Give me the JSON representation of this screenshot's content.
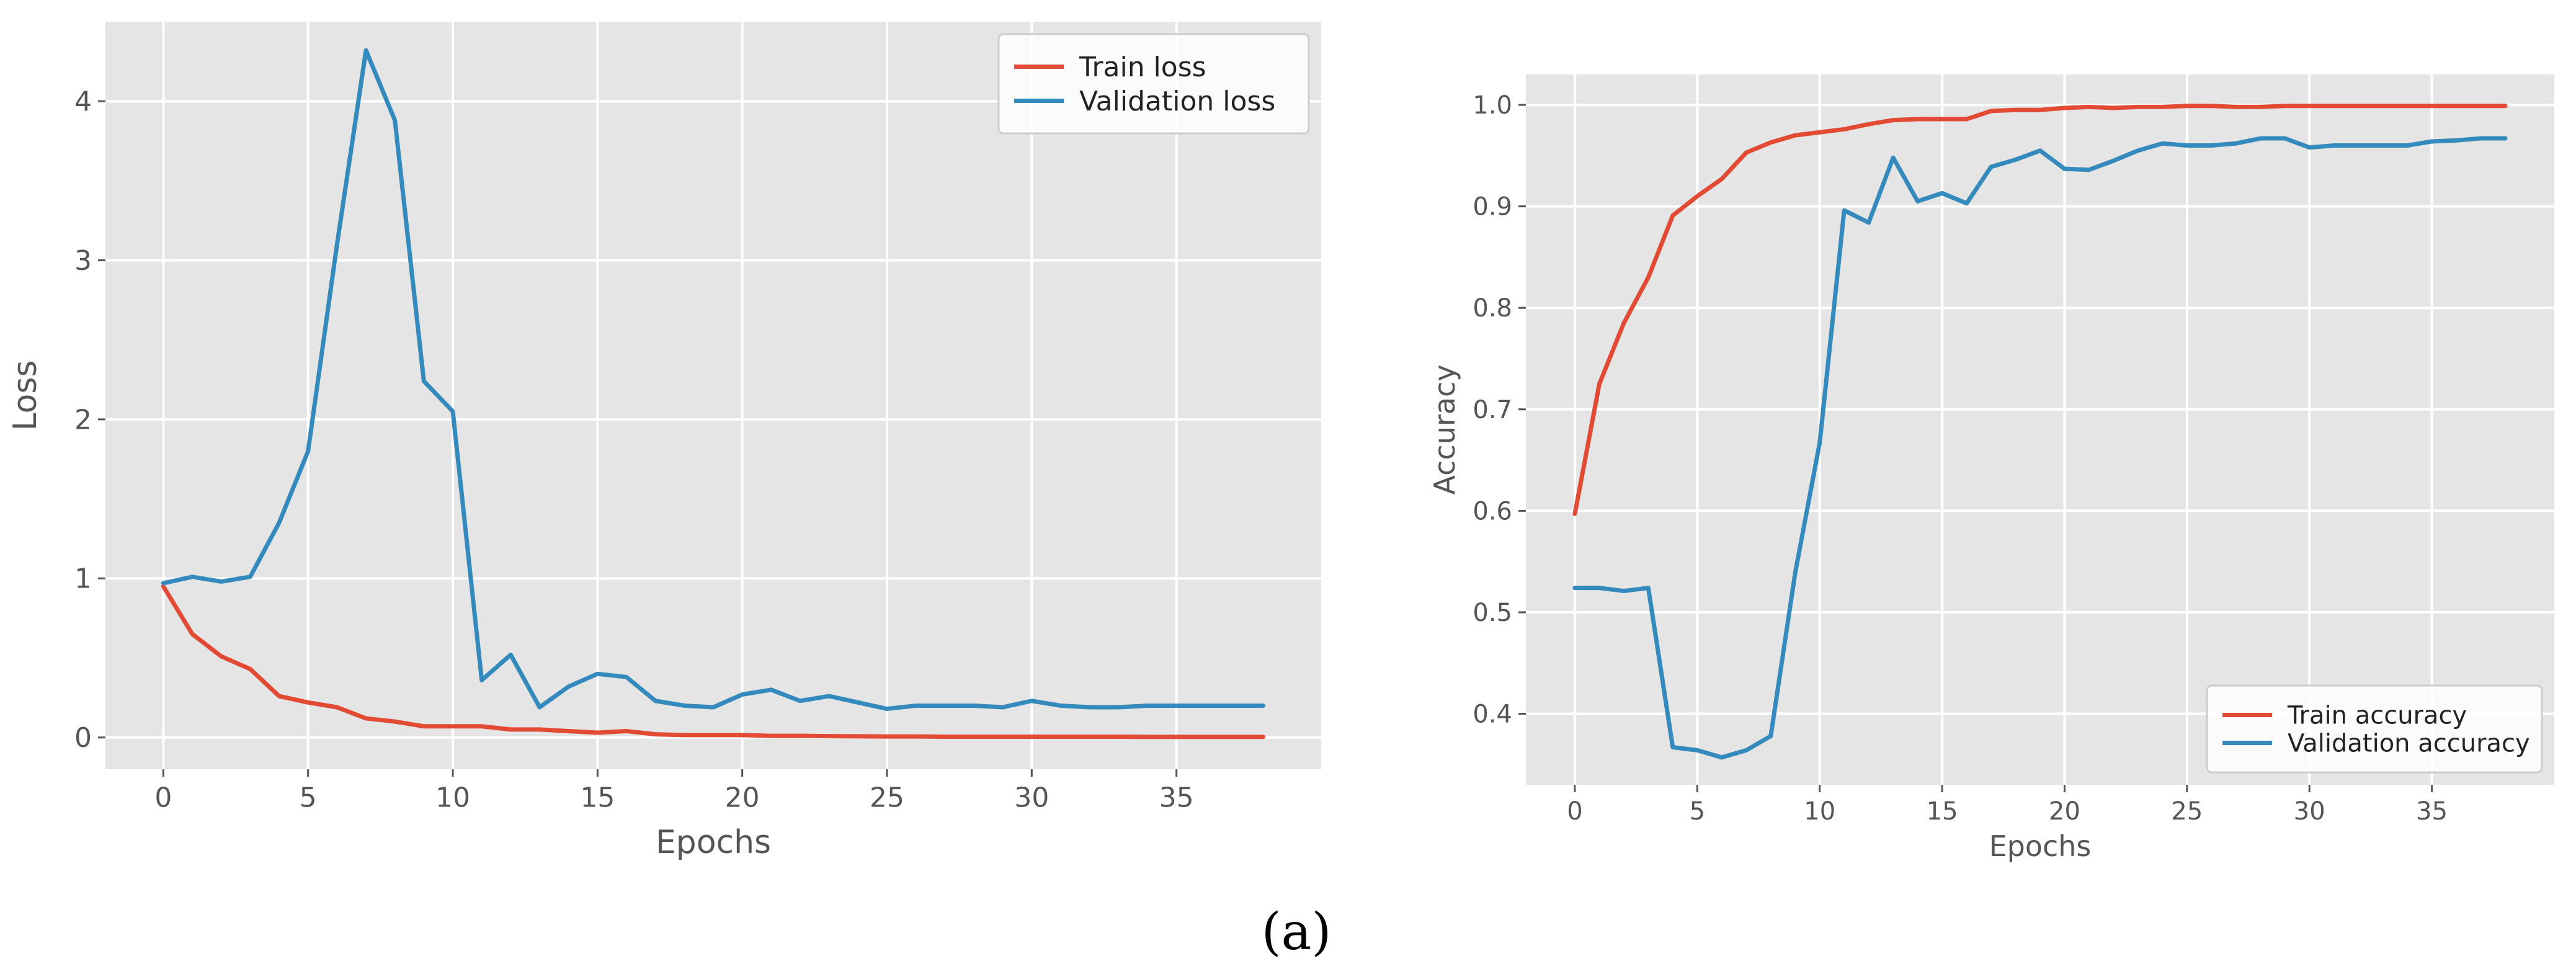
{
  "caption": "(a)",
  "chart_data": [
    {
      "type": "line",
      "title": "",
      "xlabel": "Epochs",
      "ylabel": "Loss",
      "xlim": [
        -2,
        40
      ],
      "ylim": [
        -0.2,
        4.5
      ],
      "xticks": [
        0,
        5,
        10,
        15,
        20,
        25,
        30,
        35
      ],
      "yticks": [
        0,
        1,
        2,
        3,
        4
      ],
      "legend_position": "top-right",
      "x": [
        0,
        1,
        2,
        3,
        4,
        5,
        6,
        7,
        8,
        9,
        10,
        11,
        12,
        13,
        14,
        15,
        16,
        17,
        18,
        19,
        20,
        21,
        22,
        23,
        24,
        25,
        26,
        27,
        28,
        29,
        30,
        31,
        32,
        33,
        34,
        35,
        36,
        37,
        38
      ],
      "series": [
        {
          "name": "Train loss",
          "color": "#e24a33",
          "values": [
            0.95,
            0.65,
            0.51,
            0.43,
            0.26,
            0.22,
            0.19,
            0.12,
            0.1,
            0.07,
            0.07,
            0.07,
            0.05,
            0.05,
            0.04,
            0.03,
            0.04,
            0.02,
            0.015,
            0.015,
            0.015,
            0.01,
            0.01,
            0.008,
            0.007,
            0.006,
            0.006,
            0.005,
            0.005,
            0.005,
            0.005,
            0.005,
            0.005,
            0.005,
            0.004,
            0.004,
            0.004,
            0.004,
            0.004
          ]
        },
        {
          "name": "Validation loss",
          "color": "#348abd",
          "values": [
            0.97,
            1.01,
            0.98,
            1.01,
            1.35,
            1.8,
            3.1,
            4.32,
            3.88,
            2.24,
            2.05,
            0.36,
            0.52,
            0.19,
            0.32,
            0.4,
            0.38,
            0.23,
            0.2,
            0.19,
            0.27,
            0.3,
            0.23,
            0.26,
            0.22,
            0.18,
            0.2,
            0.2,
            0.2,
            0.19,
            0.23,
            0.2,
            0.19,
            0.19,
            0.2,
            0.2,
            0.2,
            0.2,
            0.2
          ]
        }
      ]
    },
    {
      "type": "line",
      "title": "",
      "xlabel": "Epochs",
      "ylabel": "Accuracy",
      "xlim": [
        -2,
        40
      ],
      "ylim": [
        0.33,
        1.03
      ],
      "xticks": [
        0,
        5,
        10,
        15,
        20,
        25,
        30,
        35
      ],
      "yticks": [
        0.4,
        0.5,
        0.6,
        0.7,
        0.8,
        0.9,
        1.0
      ],
      "yticklabels": [
        "0.4",
        "0.5",
        "0.6",
        "0.7",
        "0.8",
        "0.9",
        "1.0"
      ],
      "legend_position": "bottom-right",
      "x": [
        0,
        1,
        2,
        3,
        4,
        5,
        6,
        7,
        8,
        9,
        10,
        11,
        12,
        13,
        14,
        15,
        16,
        17,
        18,
        19,
        20,
        21,
        22,
        23,
        24,
        25,
        26,
        27,
        28,
        29,
        30,
        31,
        32,
        33,
        34,
        35,
        36,
        37,
        38
      ],
      "series": [
        {
          "name": "Train accuracy",
          "color": "#e24a33",
          "values": [
            0.597,
            0.725,
            0.785,
            0.83,
            0.891,
            0.91,
            0.927,
            0.953,
            0.963,
            0.97,
            0.973,
            0.976,
            0.981,
            0.985,
            0.986,
            0.986,
            0.986,
            0.994,
            0.995,
            0.995,
            0.997,
            0.998,
            0.997,
            0.998,
            0.998,
            0.999,
            0.999,
            0.998,
            0.998,
            0.999,
            0.999,
            0.999,
            0.999,
            0.999,
            0.999,
            0.999,
            0.999,
            0.999,
            0.999
          ]
        },
        {
          "name": "Validation accuracy",
          "color": "#348abd",
          "values": [
            0.524,
            0.524,
            0.521,
            0.524,
            0.367,
            0.364,
            0.357,
            0.364,
            0.378,
            0.539,
            0.667,
            0.896,
            0.884,
            0.948,
            0.905,
            0.913,
            0.903,
            0.939,
            0.946,
            0.955,
            0.937,
            0.936,
            0.945,
            0.955,
            0.962,
            0.96,
            0.96,
            0.962,
            0.967,
            0.967,
            0.958,
            0.96,
            0.96,
            0.96,
            0.96,
            0.964,
            0.965,
            0.967,
            0.967
          ]
        }
      ]
    }
  ]
}
